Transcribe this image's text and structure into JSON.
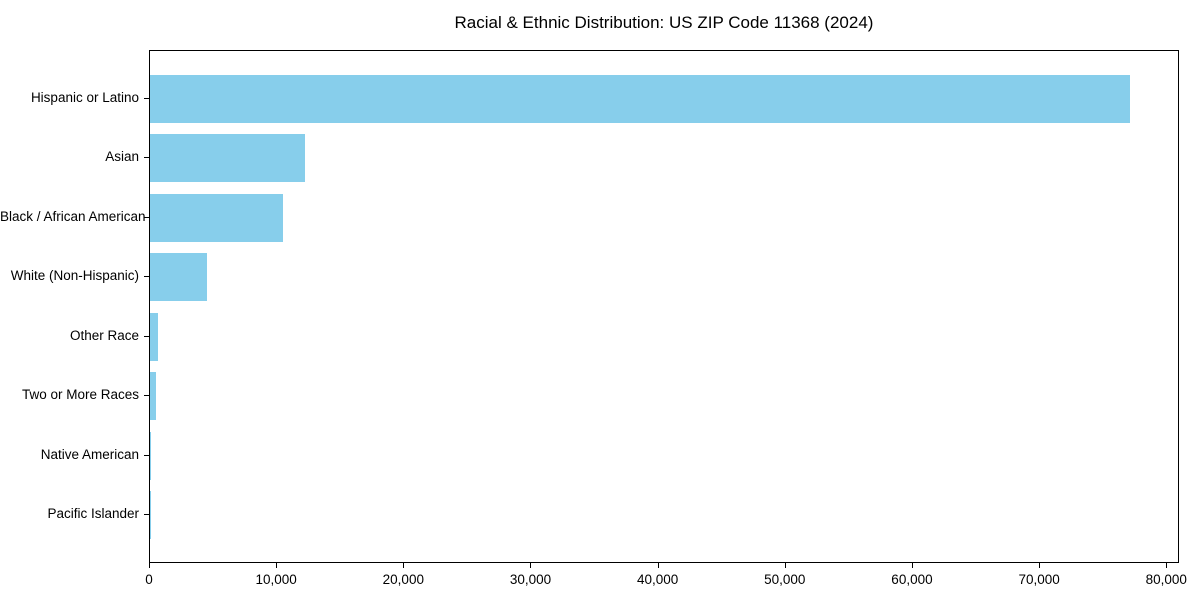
{
  "chart_data": {
    "type": "bar",
    "orientation": "horizontal",
    "title": "Racial & Ethnic Distribution: US ZIP Code 11368 (2024)",
    "categories": [
      "Hispanic or Latino",
      "Asian",
      "Black / African American",
      "White (Non-Hispanic)",
      "Other Race",
      "Two or More Races",
      "Native American",
      "Pacific Islander"
    ],
    "values": [
      77100,
      12200,
      10450,
      4500,
      650,
      470,
      100,
      30
    ],
    "xlabel": "",
    "ylabel": "",
    "xlim": [
      0,
      81000
    ],
    "x_ticks": [
      0,
      10000,
      20000,
      30000,
      40000,
      50000,
      60000,
      70000,
      80000
    ],
    "x_tick_labels": [
      "0",
      "10,000",
      "20,000",
      "30,000",
      "40,000",
      "50,000",
      "60,000",
      "70,000",
      "80,000"
    ],
    "bar_color": "#87CEEB",
    "text_color": "#000000",
    "grid": false,
    "legend": null
  }
}
